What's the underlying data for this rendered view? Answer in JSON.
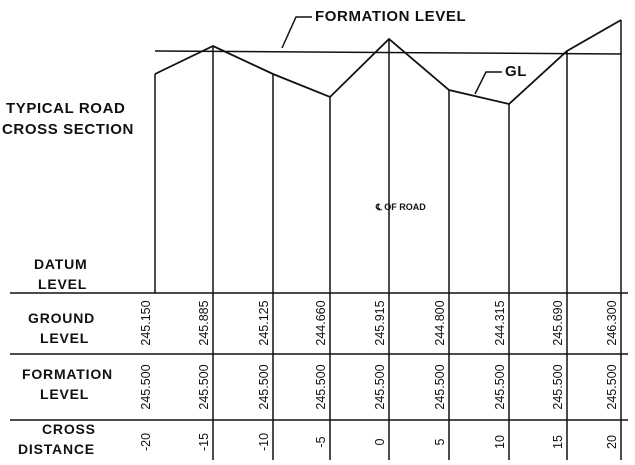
{
  "labels": {
    "formation_level": "FORMATION LEVEL",
    "gl": "GL",
    "title_line1": "TYPICAL ROAD",
    "title_line2": "CROSS SECTION",
    "centerline": "℄ OF ROAD",
    "datum_line1": "DATUM",
    "datum_line2": "LEVEL",
    "ground_line1": "GROUND",
    "ground_line2": "LEVEL",
    "formation_line1": "FORMATION",
    "formation_line2": "LEVEL",
    "cross_line1": "CROSS",
    "cross_line2": "DISTANCE"
  },
  "stations": [
    {
      "distance": "-20",
      "ground": "245.150",
      "formation": "245.500"
    },
    {
      "distance": "-15",
      "ground": "245.885",
      "formation": "245.500"
    },
    {
      "distance": "-10",
      "ground": "245.125",
      "formation": "245.500"
    },
    {
      "distance": "-5",
      "ground": "244.660",
      "formation": "245.500"
    },
    {
      "distance": "0",
      "ground": "245.915",
      "formation": "245.500"
    },
    {
      "distance": "5",
      "ground": "244.800",
      "formation": "245.500"
    },
    {
      "distance": "10",
      "ground": "244.315",
      "formation": "245.500"
    },
    {
      "distance": "15",
      "ground": "245.690",
      "formation": "245.500"
    },
    {
      "distance": "20",
      "ground": "246.300",
      "formation": "245.500"
    }
  ]
}
